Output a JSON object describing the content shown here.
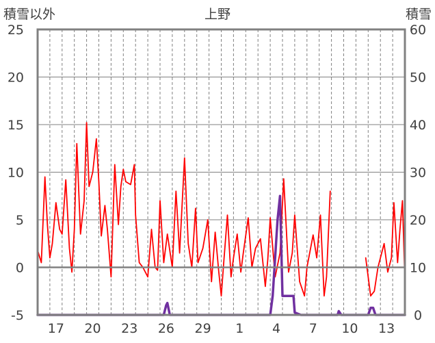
{
  "chart_data": {
    "type": "line",
    "title": "上野",
    "ylabel_left": "積雪以外",
    "ylabel_right": "積雪",
    "y_left_range": [
      -5,
      25
    ],
    "y_left_ticks": [
      -5,
      0,
      5,
      10,
      15,
      20,
      25
    ],
    "y_right_range": [
      0,
      60
    ],
    "y_right_ticks": [
      0,
      10,
      20,
      30,
      40,
      50,
      60
    ],
    "x_range_days": [
      0,
      30
    ],
    "x_tick_labels": [
      "17",
      "20",
      "23",
      "26",
      "29",
      "1",
      "4",
      "7",
      "10",
      "13"
    ],
    "x_tick_positions_days": [
      1.5,
      4.5,
      7.5,
      10.5,
      13.5,
      16.5,
      19.5,
      22.5,
      25.5,
      28.5
    ],
    "grid": "horizontal-solid, vertical-dashed-daily",
    "series": [
      {
        "axis": "left",
        "color": "#ff0000",
        "x": [
          0.0,
          0.3,
          0.6,
          0.8,
          1.0,
          1.2,
          1.5,
          1.8,
          2.0,
          2.3,
          2.6,
          2.8,
          3.0,
          3.2,
          3.5,
          3.8,
          4.0,
          4.2,
          4.5,
          4.8,
          5.0,
          5.2,
          5.5,
          5.7,
          6.0,
          6.3,
          6.6,
          6.8,
          7.0,
          7.2,
          7.6,
          7.9,
          8.0,
          8.3,
          8.6,
          9.0,
          9.3,
          9.6,
          9.8,
          10.0,
          10.3,
          10.6,
          11.0,
          11.3,
          11.6,
          12.0,
          12.3,
          12.6,
          12.9,
          13.1,
          13.5,
          13.9,
          14.2,
          14.5,
          14.8,
          15.0,
          15.2,
          15.5,
          15.8,
          16.0,
          16.3,
          16.6,
          16.8,
          17.2,
          17.5,
          17.8,
          18.2,
          18.6,
          18.8,
          19.0,
          19.4,
          19.8,
          20.1,
          20.5,
          20.8,
          21.0,
          21.4,
          21.8,
          22.0,
          22.5,
          22.8,
          23.1,
          23.4,
          23.6,
          23.9
        ],
        "y": [
          1.8,
          0.5,
          9.5,
          4.5,
          1.0,
          2.5,
          6.8,
          4.0,
          3.5,
          9.2,
          2.0,
          -0.5,
          4.0,
          13.0,
          3.5,
          7.0,
          15.2,
          8.5,
          10.0,
          13.5,
          9.0,
          3.3,
          6.5,
          4.0,
          -1.0,
          10.8,
          4.5,
          8.5,
          10.3,
          9.0,
          8.7,
          10.8,
          5.5,
          0.5,
          0.0,
          -1.0,
          4.0,
          0.0,
          -0.3,
          7.0,
          0.5,
          3.5,
          0.0,
          8.0,
          1.5,
          11.5,
          2.5,
          0.0,
          6.2,
          0.5,
          2.0,
          5.0,
          -1.5,
          3.7,
          -0.5,
          -3.0,
          0.5,
          5.5,
          -1.0,
          1.0,
          3.5,
          -0.5,
          1.5,
          5.2,
          0.0,
          2.0,
          3.0,
          -2.0,
          0.8,
          5.2,
          -1.0,
          1.5,
          9.3,
          -0.5,
          1.5,
          5.5,
          -1.5,
          -3.0,
          0.0,
          3.4,
          1.0,
          5.5,
          -3.0,
          -1.0,
          8.0
        ]
      },
      {
        "axis": "left",
        "color": "#ff0000",
        "x": [
          26.8,
          27.0,
          27.2,
          27.5,
          27.8,
          28.0,
          28.3,
          28.6,
          28.9,
          29.1,
          29.4,
          29.6,
          29.8,
          30.0
        ],
        "y": [
          1.0,
          -1.0,
          -3.0,
          -2.5,
          0.0,
          1.0,
          2.5,
          -0.5,
          1.0,
          6.8,
          0.5,
          4.0,
          7.0,
          -1.5
        ]
      },
      {
        "axis": "right",
        "color": "#7030a0",
        "x": [
          0.0,
          10.3,
          10.5,
          10.6,
          10.8,
          19.0,
          19.2,
          19.6,
          19.8,
          20.0,
          20.2,
          20.6,
          20.9,
          21.0,
          21.5,
          24.5,
          24.6,
          24.8,
          25.0,
          27.0,
          27.2,
          27.4,
          27.6,
          28.0,
          30.0
        ],
        "y": [
          0.0,
          0.0,
          2.0,
          2.5,
          0.0,
          0.0,
          4.0,
          20.0,
          25.0,
          4.0,
          4.0,
          4.0,
          4.0,
          0.5,
          0.0,
          0.0,
          0.8,
          0.0,
          0.0,
          0.0,
          1.5,
          1.5,
          0.0,
          0.0,
          0.0
        ]
      }
    ]
  }
}
